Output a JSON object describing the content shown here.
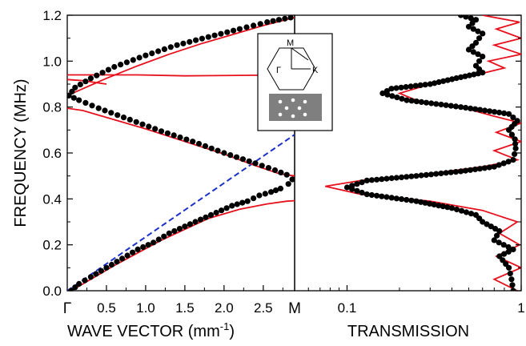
{
  "chart_data": [
    {
      "type": "scatter",
      "panel": "dispersion",
      "xlabel_main": "WAVE VECTOR (mm",
      "xlabel_exp": "-1",
      "xlabel_tail": ")",
      "ylabel": "FREQUENCY (MHz)",
      "xlim": [
        0,
        2.9
      ],
      "ylim": [
        0,
        1.2
      ],
      "x_start_label": "Γ",
      "x_end_label": "M",
      "x_ticks": [
        0.5,
        1.0,
        1.5,
        2.0,
        2.5
      ],
      "x_tick_labels": [
        "0.5",
        "1.0",
        "1.5",
        "2.0",
        "2.5"
      ],
      "y_ticks": [
        0.0,
        0.2,
        0.4,
        0.6,
        0.8,
        1.0,
        1.2
      ],
      "y_tick_labels": [
        "0.0",
        "0.2",
        "0.4",
        "0.6",
        "0.8",
        "1.0",
        "1.2"
      ],
      "grid": false,
      "colors": {
        "points": "#000000",
        "theory": "#e8101c",
        "light_line": "#1c2fc8"
      },
      "series": [
        {
          "style": "points",
          "branches": [
            [
              [
                0.05,
                0.0
              ],
              [
                0.15,
                0.03
              ],
              [
                0.3,
                0.06
              ],
              [
                0.5,
                0.1
              ],
              [
                0.7,
                0.14
              ],
              [
                0.9,
                0.18
              ],
              [
                1.1,
                0.21
              ],
              [
                1.3,
                0.25
              ],
              [
                1.5,
                0.28
              ],
              [
                1.7,
                0.31
              ],
              [
                1.9,
                0.34
              ],
              [
                2.1,
                0.37
              ],
              [
                2.3,
                0.39
              ],
              [
                2.45,
                0.415
              ],
              [
                2.6,
                0.43
              ],
              [
                2.72,
                0.445
              ],
              [
                2.82,
                0.465
              ],
              [
                2.87,
                0.485
              ]
            ],
            [
              [
                2.87,
                0.485
              ],
              [
                2.8,
                0.505
              ],
              [
                2.65,
                0.525
              ],
              [
                2.4,
                0.555
              ],
              [
                2.0,
                0.6
              ],
              [
                1.6,
                0.65
              ],
              [
                1.2,
                0.695
              ],
              [
                0.8,
                0.745
              ],
              [
                0.4,
                0.795
              ],
              [
                0.15,
                0.83
              ],
              [
                0.02,
                0.85
              ]
            ],
            [
              [
                0.02,
                0.85
              ],
              [
                0.1,
                0.885
              ],
              [
                0.3,
                0.925
              ],
              [
                0.6,
                0.975
              ],
              [
                1.0,
                1.025
              ],
              [
                1.4,
                1.07
              ],
              [
                1.8,
                1.105
              ],
              [
                2.2,
                1.14
              ],
              [
                2.55,
                1.17
              ],
              [
                2.85,
                1.19
              ]
            ]
          ]
        },
        {
          "style": "line",
          "branches": [
            [
              [
                0.05,
                0.0
              ],
              [
                0.6,
                0.11
              ],
              [
                1.2,
                0.22
              ],
              [
                1.8,
                0.315
              ],
              [
                2.2,
                0.355
              ],
              [
                2.55,
                0.378
              ],
              [
                2.8,
                0.39
              ],
              [
                2.9,
                0.392
              ]
            ],
            [
              [
                2.9,
                0.5
              ],
              [
                2.7,
                0.51
              ],
              [
                2.4,
                0.545
              ],
              [
                2.0,
                0.595
              ],
              [
                1.5,
                0.65
              ],
              [
                1.0,
                0.705
              ],
              [
                0.5,
                0.755
              ],
              [
                0.2,
                0.785
              ],
              [
                0.0,
                0.795
              ]
            ],
            [
              [
                0.0,
                0.85
              ],
              [
                0.2,
                0.88
              ],
              [
                0.5,
                0.925
              ],
              [
                0.9,
                0.98
              ],
              [
                1.3,
                1.03
              ],
              [
                1.7,
                1.075
              ],
              [
                2.1,
                1.115
              ],
              [
                2.5,
                1.155
              ],
              [
                2.9,
                1.19
              ]
            ],
            [
              [
                0.0,
                0.94
              ],
              [
                0.9,
                0.94
              ],
              [
                1.5,
                0.936
              ],
              [
                2.2,
                0.938
              ],
              [
                2.9,
                0.94
              ]
            ],
            [
              [
                0.0,
                0.92
              ],
              [
                0.2,
                0.915
              ],
              [
                0.4,
                0.905
              ],
              [
                0.5,
                0.9
              ]
            ]
          ]
        },
        {
          "style": "dashed",
          "points": [
            [
              0.0,
              0.0
            ],
            [
              2.9,
              0.68
            ]
          ]
        }
      ]
    },
    {
      "type": "scatter",
      "panel": "transmission",
      "xlabel": "TRANSMISSION",
      "xscale": "log",
      "xlim": [
        0.05,
        1.0
      ],
      "ylim": [
        0,
        1.2
      ],
      "x_ticks": [
        0.1,
        1.0
      ],
      "x_tick_labels": [
        "0.1",
        "1"
      ],
      "grid": false,
      "series": [
        {
          "style": "points",
          "points": [
            [
              0.9,
              0.0
            ],
            [
              0.88,
              0.05
            ],
            [
              0.85,
              0.1
            ],
            [
              0.75,
              0.15
            ],
            [
              0.9,
              0.18
            ],
            [
              0.7,
              0.22
            ],
            [
              0.75,
              0.26
            ],
            [
              0.6,
              0.3
            ],
            [
              0.55,
              0.33
            ],
            [
              0.4,
              0.36
            ],
            [
              0.25,
              0.39
            ],
            [
              0.13,
              0.42
            ],
            [
              0.1,
              0.45
            ],
            [
              0.13,
              0.48
            ],
            [
              0.25,
              0.5
            ],
            [
              0.45,
              0.52
            ],
            [
              0.7,
              0.54
            ],
            [
              0.9,
              0.57
            ],
            [
              0.93,
              0.62
            ],
            [
              0.92,
              0.66
            ],
            [
              0.85,
              0.7
            ],
            [
              0.95,
              0.74
            ],
            [
              0.85,
              0.77
            ],
            [
              0.45,
              0.8
            ],
            [
              0.22,
              0.83
            ],
            [
              0.16,
              0.86
            ],
            [
              0.18,
              0.88
            ],
            [
              0.3,
              0.9
            ],
            [
              0.45,
              0.93
            ],
            [
              0.6,
              0.95
            ],
            [
              0.55,
              0.98
            ],
            [
              0.6,
              1.02
            ],
            [
              0.5,
              1.05
            ],
            [
              0.55,
              1.08
            ],
            [
              0.6,
              1.12
            ],
            [
              0.5,
              1.15
            ],
            [
              0.55,
              1.18
            ],
            [
              0.45,
              1.2
            ]
          ]
        },
        {
          "style": "line",
          "points": [
            [
              0.95,
              0.0
            ],
            [
              0.7,
              0.05
            ],
            [
              1.0,
              0.1
            ],
            [
              0.72,
              0.15
            ],
            [
              0.98,
              0.2
            ],
            [
              0.75,
              0.25
            ],
            [
              0.95,
              0.3
            ],
            [
              0.6,
              0.35
            ],
            [
              0.3,
              0.39
            ],
            [
              0.12,
              0.42
            ],
            [
              0.075,
              0.455
            ],
            [
              0.12,
              0.48
            ],
            [
              0.3,
              0.51
            ],
            [
              0.6,
              0.54
            ],
            [
              0.95,
              0.57
            ],
            [
              0.7,
              0.61
            ],
            [
              1.0,
              0.65
            ],
            [
              0.72,
              0.69
            ],
            [
              1.0,
              0.73
            ],
            [
              0.7,
              0.76
            ],
            [
              0.45,
              0.8
            ],
            [
              0.25,
              0.83
            ],
            [
              0.2,
              0.86
            ],
            [
              0.3,
              0.9
            ],
            [
              0.55,
              0.94
            ],
            [
              0.8,
              0.97
            ],
            [
              0.65,
              1.0
            ],
            [
              1.0,
              1.03
            ],
            [
              0.7,
              1.07
            ],
            [
              1.0,
              1.1
            ],
            [
              0.72,
              1.14
            ],
            [
              0.98,
              1.17
            ],
            [
              0.6,
              1.2
            ]
          ]
        }
      ]
    }
  ],
  "inset": {
    "labels": {
      "M": "M",
      "Gamma": "Γ",
      "K": "K"
    }
  }
}
